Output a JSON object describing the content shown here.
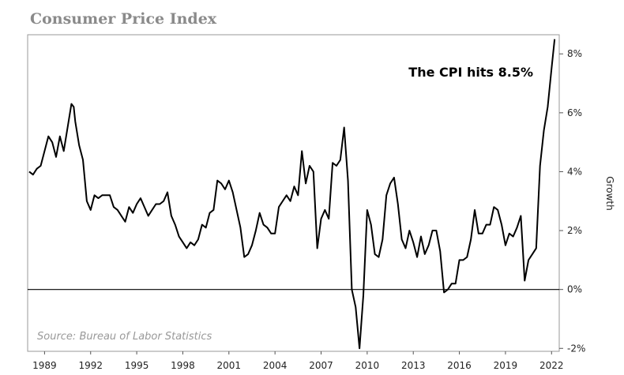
{
  "chart_data": {
    "type": "line",
    "title": "Consumer Price Index",
    "annotation": "The CPI hits 8.5%",
    "source": "Source: Bureau of Labor Statistics",
    "y_label": "Growth",
    "xlim": [
      1987.9,
      2022.5
    ],
    "ylim": [
      -2.1,
      8.65
    ],
    "xticks": [
      1989,
      1992,
      1995,
      1998,
      2001,
      2004,
      2007,
      2010,
      2013,
      2016,
      2019,
      2022
    ],
    "yticks": [
      {
        "value": -2,
        "label": "-2%"
      },
      {
        "value": 0,
        "label": "0%"
      },
      {
        "value": 2,
        "label": "2%"
      },
      {
        "value": 4,
        "label": "4%"
      },
      {
        "value": 6,
        "label": "6%"
      },
      {
        "value": 8,
        "label": "8%"
      }
    ],
    "series": [
      {
        "color": "#000000",
        "x": [
          1988.0,
          1988.25,
          1988.5,
          1988.75,
          1989.0,
          1989.25,
          1989.5,
          1989.75,
          1990.0,
          1990.25,
          1990.5,
          1990.75,
          1990.9,
          1991.0,
          1991.25,
          1991.5,
          1991.75,
          1992.0,
          1992.25,
          1992.5,
          1992.75,
          1993.0,
          1993.25,
          1993.5,
          1993.75,
          1994.0,
          1994.25,
          1994.5,
          1994.75,
          1995.0,
          1995.25,
          1995.5,
          1995.75,
          1996.0,
          1996.25,
          1996.5,
          1996.75,
          1997.0,
          1997.25,
          1997.5,
          1997.75,
          1998.0,
          1998.25,
          1998.5,
          1998.75,
          1999.0,
          1999.25,
          1999.5,
          1999.75,
          2000.0,
          2000.25,
          2000.5,
          2000.75,
          2001.0,
          2001.25,
          2001.5,
          2001.75,
          2002.0,
          2002.25,
          2002.5,
          2002.75,
          2003.0,
          2003.25,
          2003.5,
          2003.75,
          2004.0,
          2004.25,
          2004.5,
          2004.75,
          2005.0,
          2005.25,
          2005.5,
          2005.75,
          2006.0,
          2006.25,
          2006.5,
          2006.75,
          2007.0,
          2007.25,
          2007.5,
          2007.75,
          2008.0,
          2008.25,
          2008.5,
          2008.75,
          2009.0,
          2009.25,
          2009.5,
          2009.75,
          2010.0,
          2010.25,
          2010.5,
          2010.75,
          2011.0,
          2011.25,
          2011.5,
          2011.75,
          2012.0,
          2012.25,
          2012.5,
          2012.75,
          2013.0,
          2013.25,
          2013.5,
          2013.75,
          2014.0,
          2014.25,
          2014.5,
          2014.75,
          2015.0,
          2015.25,
          2015.5,
          2015.75,
          2016.0,
          2016.25,
          2016.5,
          2016.75,
          2017.0,
          2017.25,
          2017.5,
          2017.75,
          2018.0,
          2018.25,
          2018.5,
          2018.75,
          2019.0,
          2019.25,
          2019.5,
          2019.75,
          2020.0,
          2020.25,
          2020.5,
          2020.75,
          2021.0,
          2021.25,
          2021.5,
          2021.75,
          2022.0,
          2022.2
        ],
        "values": [
          4.0,
          3.9,
          4.1,
          4.2,
          4.7,
          5.2,
          5.0,
          4.5,
          5.2,
          4.7,
          5.5,
          6.3,
          6.2,
          5.7,
          4.9,
          4.4,
          3.0,
          2.7,
          3.2,
          3.1,
          3.2,
          3.2,
          3.2,
          2.8,
          2.7,
          2.5,
          2.3,
          2.8,
          2.6,
          2.9,
          3.1,
          2.8,
          2.5,
          2.7,
          2.9,
          2.9,
          3.0,
          3.3,
          2.5,
          2.2,
          1.8,
          1.6,
          1.4,
          1.6,
          1.5,
          1.7,
          2.2,
          2.1,
          2.6,
          2.7,
          3.7,
          3.6,
          3.4,
          3.7,
          3.3,
          2.7,
          2.1,
          1.1,
          1.2,
          1.5,
          2.0,
          2.6,
          2.2,
          2.1,
          1.9,
          1.9,
          2.8,
          3.0,
          3.2,
          3.0,
          3.5,
          3.2,
          4.7,
          3.6,
          4.2,
          4.0,
          1.4,
          2.4,
          2.7,
          2.4,
          4.3,
          4.2,
          4.4,
          5.5,
          3.7,
          0.0,
          -0.6,
          -2.0,
          -0.2,
          2.7,
          2.2,
          1.2,
          1.1,
          1.7,
          3.2,
          3.6,
          3.8,
          2.9,
          1.7,
          1.4,
          2.0,
          1.6,
          1.1,
          1.8,
          1.2,
          1.5,
          2.0,
          2.0,
          1.3,
          -0.1,
          0.0,
          0.2,
          0.2,
          1.0,
          1.0,
          1.1,
          1.7,
          2.7,
          1.9,
          1.9,
          2.2,
          2.2,
          2.8,
          2.7,
          2.2,
          1.5,
          1.9,
          1.8,
          2.1,
          2.5,
          0.3,
          1.0,
          1.2,
          1.4,
          4.2,
          5.4,
          6.2,
          7.5,
          8.5
        ]
      }
    ]
  }
}
